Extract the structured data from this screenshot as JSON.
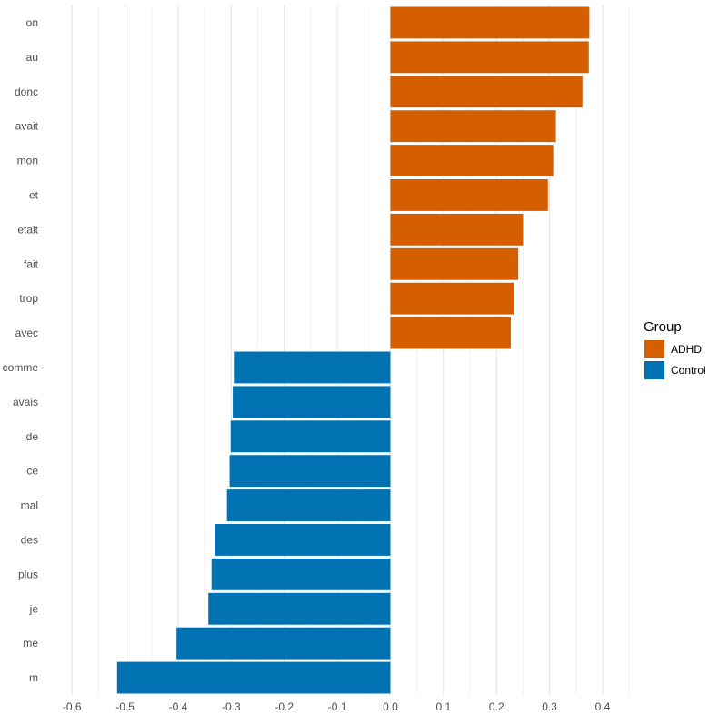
{
  "chart_data": {
    "type": "bar",
    "orientation": "horizontal",
    "title": "",
    "xlabel": "",
    "ylabel": "",
    "xlim": [
      -0.65,
      0.46
    ],
    "xticks": [
      "-0.6",
      "-0.5",
      "-0.4",
      "-0.3",
      "-0.2",
      "-0.1",
      "0.0",
      "0.1",
      "0.2",
      "0.3",
      "0.4"
    ],
    "grid": true,
    "legend": {
      "title": "Group",
      "position": "right",
      "entries": [
        {
          "name": "ADHD",
          "color": "#D55E00"
        },
        {
          "name": "Control",
          "color": "#0072B2"
        }
      ]
    },
    "bars": [
      {
        "category": "on",
        "value": 0.375,
        "group": "ADHD"
      },
      {
        "category": "au",
        "value": 0.374,
        "group": "ADHD"
      },
      {
        "category": "donc",
        "value": 0.362,
        "group": "ADHD"
      },
      {
        "category": "avait",
        "value": 0.312,
        "group": "ADHD"
      },
      {
        "category": "mon",
        "value": 0.307,
        "group": "ADHD"
      },
      {
        "category": "et",
        "value": 0.297,
        "group": "ADHD"
      },
      {
        "category": "etait",
        "value": 0.25,
        "group": "ADHD"
      },
      {
        "category": "fait",
        "value": 0.241,
        "group": "ADHD"
      },
      {
        "category": "trop",
        "value": 0.233,
        "group": "ADHD"
      },
      {
        "category": "avec",
        "value": 0.227,
        "group": "ADHD"
      },
      {
        "category": "comme",
        "value": -0.295,
        "group": "Control"
      },
      {
        "category": "avais",
        "value": -0.297,
        "group": "Control"
      },
      {
        "category": "de",
        "value": -0.301,
        "group": "Control"
      },
      {
        "category": "ce",
        "value": -0.303,
        "group": "Control"
      },
      {
        "category": "mal",
        "value": -0.308,
        "group": "Control"
      },
      {
        "category": "des",
        "value": -0.331,
        "group": "Control"
      },
      {
        "category": "plus",
        "value": -0.337,
        "group": "Control"
      },
      {
        "category": "je",
        "value": -0.343,
        "group": "Control"
      },
      {
        "category": "me",
        "value": -0.403,
        "group": "Control"
      },
      {
        "category": "m",
        "value": -0.515,
        "group": "Control"
      }
    ]
  }
}
